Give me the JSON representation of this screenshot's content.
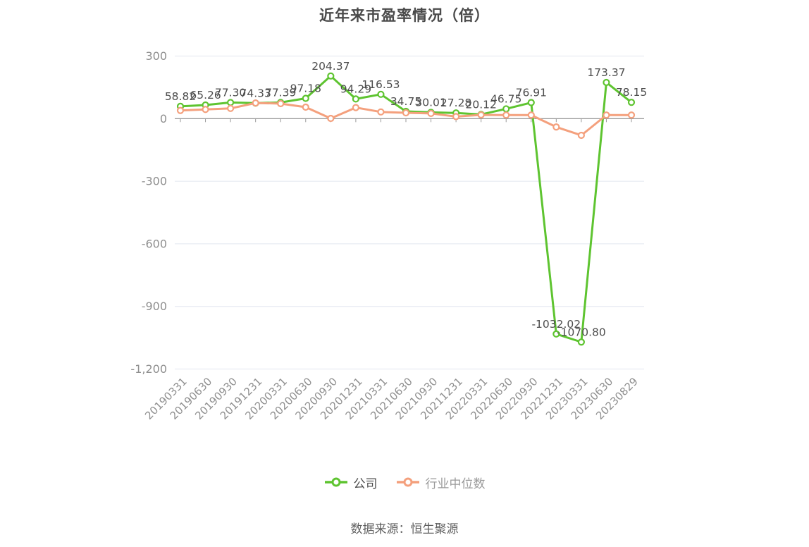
{
  "title": "近年来市盈率情况（倍）",
  "source": "数据来源：恒生聚源",
  "colors": {
    "company": "#5EC430",
    "industry": "#F4A07D",
    "grid": "#E2E6EF",
    "axis": "#888888",
    "tick": "#999999",
    "axis_label": "#8F8F8F",
    "data_label": "#4D4D4D",
    "title_text": "#4A4A4A"
  },
  "legend": [
    {
      "label": "公司",
      "color": "#5EC430",
      "text_color": "#4D4D4D"
    },
    {
      "label": "行业中位数",
      "color": "#F4A07D",
      "text_color": "#9A9A9A"
    }
  ],
  "chart_data": {
    "type": "line",
    "title": "近年来市盈率情况（倍）",
    "categories": [
      "20190331",
      "20190630",
      "20190930",
      "20191231",
      "20200331",
      "20200630",
      "20200930",
      "20201231",
      "20210331",
      "20210630",
      "20210930",
      "20211231",
      "20220331",
      "20220630",
      "20220930",
      "20221231",
      "20230331",
      "20230630",
      "20230829"
    ],
    "series": [
      {
        "name": "公司",
        "color": "#5EC430",
        "labels_shown": true,
        "values": [
          58.82,
          65.26,
          77.3,
          74.33,
          77.39,
          97.18,
          204.37,
          94.29,
          116.53,
          34.75,
          30.01,
          27.28,
          20.12,
          46.75,
          76.91,
          -1032.02,
          -1070.8,
          173.37,
          78.15
        ]
      },
      {
        "name": "行业中位数",
        "color": "#F4A07D",
        "labels_shown": false,
        "values": [
          39,
          44,
          49,
          75,
          72,
          55,
          1,
          53,
          32,
          28,
          25,
          10,
          18,
          17,
          17,
          -40,
          -80,
          17,
          17
        ]
      }
    ],
    "ylim": [
      -1200,
      300
    ],
    "yticks": [
      300,
      0,
      -300,
      -600,
      -900,
      -1200
    ],
    "ytick_labels": [
      "300",
      "0",
      "-300",
      "-600",
      "-900",
      "-1,200"
    ],
    "grid": true,
    "legend_position": "bottom",
    "x_label_rotation": -45
  }
}
